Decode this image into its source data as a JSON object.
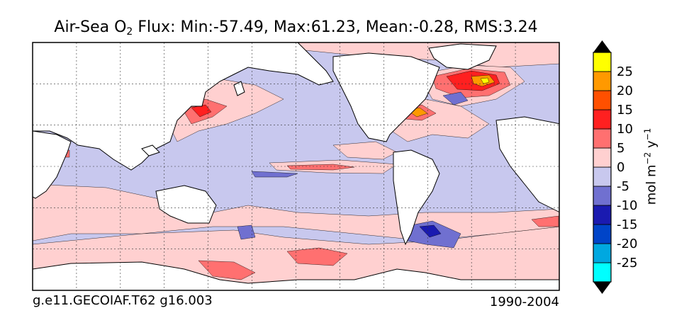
{
  "chart_data": {
    "type": "heatmap",
    "title_main": "Air-Sea O",
    "title_sub": "2",
    "title_rest": " Flux: Min:-57.49, Max:61.23, Mean:-0.28, RMS:3.24",
    "footer_left": "g.e11.GECOIAF.T62 g16.003",
    "footer_right": "1990-2004",
    "colorbar_label_base": "mol m",
    "colorbar_label_exp1": "−2",
    "colorbar_label_mid": " y",
    "colorbar_label_exp2": "−1",
    "colorbar_levels": [
      -30,
      -25,
      -20,
      -15,
      -10,
      -5,
      0,
      5,
      10,
      15,
      20,
      25,
      30
    ],
    "colorbar_ticks": [
      "25",
      "20",
      "15",
      "10",
      "5",
      "0",
      "-5",
      "-10",
      "-15",
      "-20",
      "-25"
    ],
    "colorbar_colors": [
      "#00ffff",
      "#00a8e0",
      "#0044c8",
      "#1a1ab0",
      "#7070d0",
      "#c8c8ee",
      "#ffd0d0",
      "#ff7070",
      "#ff2020",
      "#ff5000",
      "#ff9900",
      "#ffff00"
    ],
    "extend": "both",
    "grid": true,
    "colors": {
      "land": "#ffffff",
      "ocean_base": "#c8c8ee",
      "coast": "#000000"
    }
  }
}
